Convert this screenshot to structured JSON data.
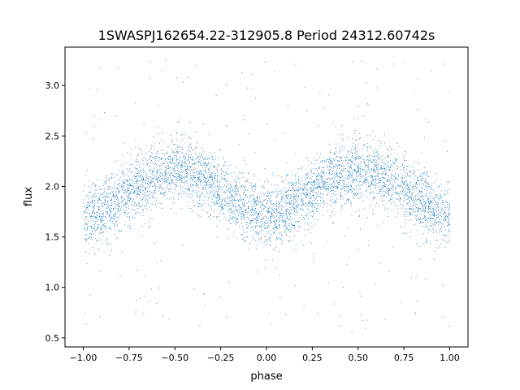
{
  "chart_data": {
    "type": "scatter",
    "title": "1SWASPJ162654.22-312905.8 Period 24312.60742s",
    "xlabel": "phase",
    "ylabel": "flux",
    "xlim": [
      -1.1,
      1.1
    ],
    "ylim": [
      0.41,
      3.38
    ],
    "xticks": [
      -1.0,
      -0.75,
      -0.5,
      -0.25,
      0.0,
      0.25,
      0.5,
      0.75,
      1.0
    ],
    "xtick_labels": [
      "−1.00",
      "−0.75",
      "−0.50",
      "−0.25",
      "0.00",
      "0.25",
      "0.50",
      "0.75",
      "1.00"
    ],
    "yticks": [
      0.5,
      1.0,
      1.5,
      2.0,
      2.5,
      3.0
    ],
    "ytick_labels": [
      "0.5",
      "1.0",
      "1.5",
      "2.0",
      "2.5",
      "3.0"
    ],
    "grid": false,
    "legend": "none",
    "point_color": "#1f77b4",
    "series": [
      {
        "trend": {
          "x": [
            -1.0,
            -0.9,
            -0.8,
            -0.7,
            -0.6,
            -0.5,
            -0.4,
            -0.3,
            -0.2,
            -0.1,
            0.0,
            0.1,
            0.2,
            0.3,
            0.4,
            0.5,
            0.6,
            0.7,
            0.8,
            0.9,
            1.0
          ],
          "y": [
            1.72,
            1.75,
            1.88,
            2.02,
            2.13,
            2.17,
            2.14,
            2.05,
            1.9,
            1.78,
            1.72,
            1.75,
            1.88,
            2.02,
            2.13,
            2.17,
            2.14,
            2.05,
            1.9,
            1.78,
            1.72
          ]
        },
        "scatter_sd": 0.16,
        "outlier_range": [
          0.55,
          3.25
        ]
      }
    ]
  }
}
